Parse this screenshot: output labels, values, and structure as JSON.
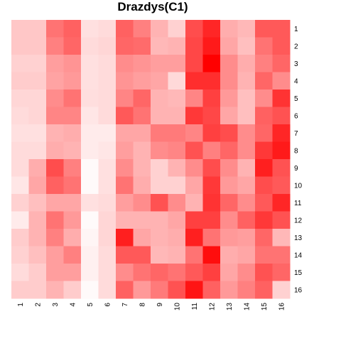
{
  "chart_data": {
    "type": "heatmap",
    "title": "Drazdys(C1)",
    "xlabel": "",
    "ylabel": "",
    "x_categories": [
      "1",
      "2",
      "3",
      "4",
      "5",
      "6",
      "7",
      "8",
      "9",
      "10",
      "11",
      "12",
      "13",
      "14",
      "15",
      "16"
    ],
    "y_categories": [
      "1",
      "2",
      "3",
      "4",
      "5",
      "6",
      "7",
      "8",
      "9",
      "10",
      "11",
      "12",
      "13",
      "14",
      "15",
      "16"
    ],
    "color_scale": {
      "low": "#ffffff",
      "high": "#ff0000",
      "range": [
        0,
        1
      ]
    },
    "grid": false,
    "legend": "none",
    "values": [
      [
        0.22,
        0.22,
        0.55,
        0.62,
        0.12,
        0.14,
        0.62,
        0.5,
        0.3,
        0.18,
        0.7,
        0.85,
        0.32,
        0.28,
        0.65,
        0.65
      ],
      [
        0.22,
        0.22,
        0.5,
        0.6,
        0.14,
        0.16,
        0.6,
        0.58,
        0.28,
        0.3,
        0.72,
        0.9,
        0.35,
        0.25,
        0.55,
        0.65
      ],
      [
        0.18,
        0.18,
        0.38,
        0.42,
        0.12,
        0.14,
        0.45,
        0.42,
        0.38,
        0.38,
        0.72,
        1.0,
        0.45,
        0.32,
        0.5,
        0.6
      ],
      [
        0.2,
        0.2,
        0.36,
        0.4,
        0.12,
        0.14,
        0.42,
        0.38,
        0.35,
        0.15,
        0.82,
        0.82,
        0.45,
        0.3,
        0.6,
        0.45
      ],
      [
        0.16,
        0.16,
        0.45,
        0.55,
        0.13,
        0.14,
        0.48,
        0.6,
        0.3,
        0.28,
        0.48,
        0.75,
        0.4,
        0.25,
        0.45,
        0.8
      ],
      [
        0.14,
        0.16,
        0.48,
        0.48,
        0.1,
        0.14,
        0.65,
        0.55,
        0.3,
        0.3,
        0.78,
        0.72,
        0.35,
        0.25,
        0.62,
        0.68
      ],
      [
        0.12,
        0.12,
        0.3,
        0.32,
        0.08,
        0.08,
        0.35,
        0.35,
        0.52,
        0.52,
        0.48,
        0.75,
        0.7,
        0.45,
        0.6,
        0.85
      ],
      [
        0.14,
        0.14,
        0.32,
        0.3,
        0.08,
        0.1,
        0.38,
        0.3,
        0.45,
        0.48,
        0.68,
        0.5,
        0.6,
        0.45,
        0.78,
        0.9
      ],
      [
        0.14,
        0.32,
        0.7,
        0.5,
        0.02,
        0.12,
        0.45,
        0.3,
        0.18,
        0.3,
        0.45,
        0.7,
        0.45,
        0.3,
        0.88,
        0.68
      ],
      [
        0.1,
        0.35,
        0.62,
        0.55,
        0.02,
        0.12,
        0.55,
        0.32,
        0.18,
        0.18,
        0.35,
        0.78,
        0.4,
        0.35,
        0.7,
        0.65
      ],
      [
        0.18,
        0.25,
        0.35,
        0.35,
        0.12,
        0.14,
        0.38,
        0.45,
        0.68,
        0.45,
        0.3,
        0.8,
        0.6,
        0.45,
        0.65,
        0.85
      ],
      [
        0.08,
        0.3,
        0.55,
        0.4,
        0.02,
        0.16,
        0.3,
        0.3,
        0.3,
        0.35,
        0.75,
        0.75,
        0.45,
        0.62,
        0.78,
        0.68
      ],
      [
        0.2,
        0.3,
        0.5,
        0.32,
        0.04,
        0.16,
        0.88,
        0.35,
        0.3,
        0.32,
        0.88,
        0.55,
        0.4,
        0.38,
        0.6,
        0.28
      ],
      [
        0.18,
        0.25,
        0.38,
        0.5,
        0.06,
        0.14,
        0.65,
        0.65,
        0.28,
        0.3,
        0.55,
        0.95,
        0.32,
        0.35,
        0.55,
        0.55
      ],
      [
        0.14,
        0.2,
        0.38,
        0.38,
        0.06,
        0.14,
        0.45,
        0.55,
        0.6,
        0.55,
        0.65,
        0.75,
        0.35,
        0.45,
        0.68,
        0.6
      ],
      [
        0.2,
        0.2,
        0.3,
        0.2,
        0.02,
        0.14,
        0.62,
        0.4,
        0.52,
        0.68,
        0.92,
        0.62,
        0.4,
        0.5,
        0.62,
        0.18
      ]
    ]
  }
}
